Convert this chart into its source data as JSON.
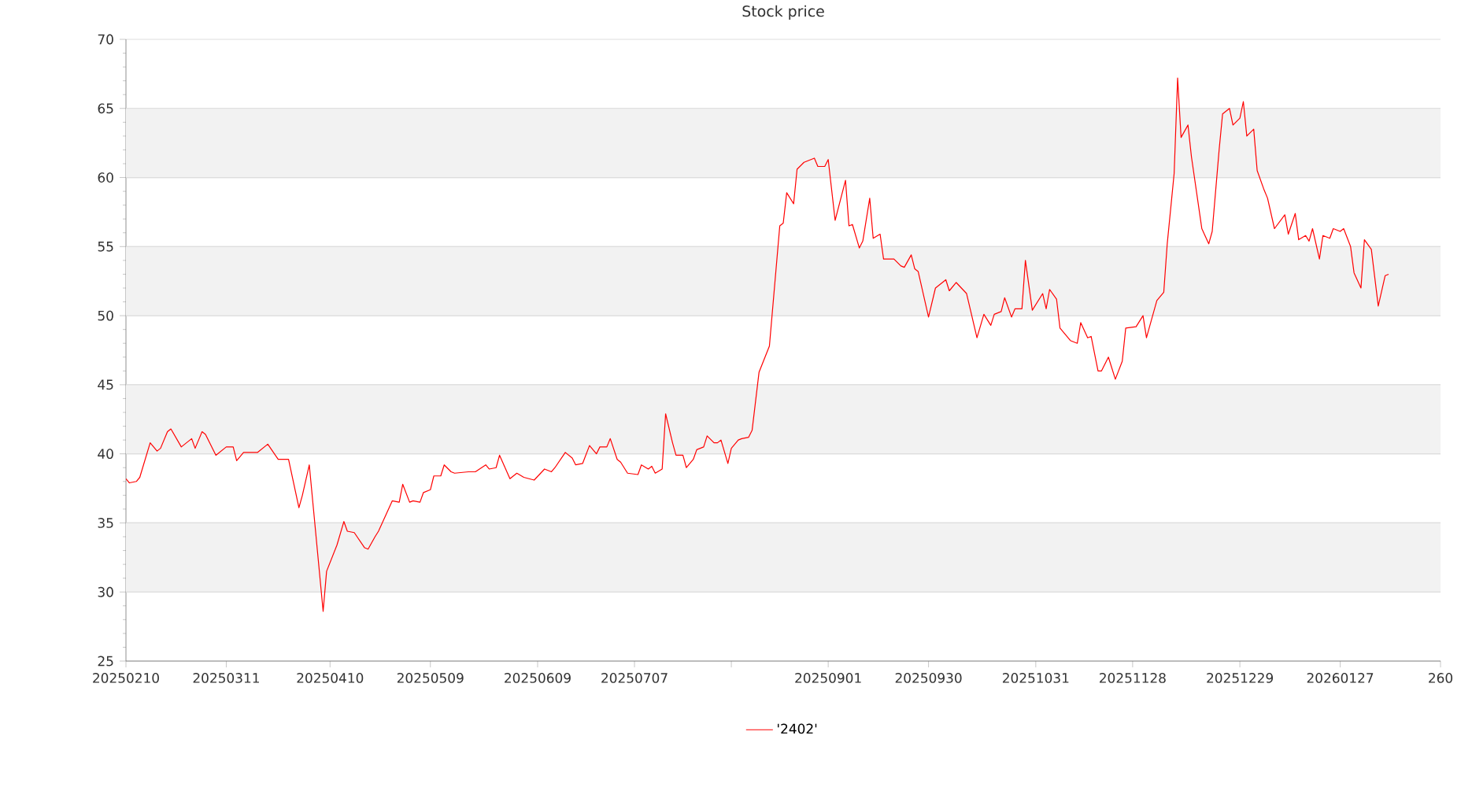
{
  "chart_data": {
    "type": "line",
    "title": "Stock price",
    "xlim": [
      "2025-02-10",
      "2026-02-25"
    ],
    "ylim": [
      25,
      70
    ],
    "xticks": [
      {
        "value": "2025-02-10",
        "label": "20250210"
      },
      {
        "value": "2025-03-11",
        "label": "20250311"
      },
      {
        "value": "2025-04-10",
        "label": "20250410"
      },
      {
        "value": "2025-05-09",
        "label": "20250509"
      },
      {
        "value": "2025-06-09",
        "label": "20250609"
      },
      {
        "value": "2025-07-07",
        "label": "20250707"
      },
      {
        "value": "2025-08-04",
        "label": null
      },
      {
        "value": "2025-09-01",
        "label": "20250901"
      },
      {
        "value": "2025-09-30",
        "label": "20250930"
      },
      {
        "value": "2025-10-31",
        "label": "20251031"
      },
      {
        "value": "2025-11-28",
        "label": "20251128"
      },
      {
        "value": "2025-12-29",
        "label": "20251229"
      },
      {
        "value": "2026-01-27",
        "label": "20260127"
      },
      {
        "value": "2026-02-25",
        "label": "260"
      }
    ],
    "yticks": [
      25,
      30,
      35,
      40,
      45,
      50,
      55,
      60,
      65,
      70
    ],
    "grid": "y",
    "legend": "bottom",
    "marker": "none",
    "line_style": "solid",
    "series": [
      {
        "name": "'2402'",
        "color": "#ff0000",
        "x": [
          "2025-02-10",
          "2025-02-11",
          "2025-02-13",
          "2025-02-14",
          "2025-02-17",
          "2025-02-19",
          "2025-02-20",
          "2025-02-22",
          "2025-02-23",
          "2025-02-26",
          "2025-03-01",
          "2025-03-02",
          "2025-03-04",
          "2025-03-05",
          "2025-03-08",
          "2025-03-11",
          "2025-03-13",
          "2025-03-14",
          "2025-03-16",
          "2025-03-19",
          "2025-03-20",
          "2025-03-23",
          "2025-03-26",
          "2025-03-29",
          "2025-04-01",
          "2025-04-02",
          "2025-04-04",
          "2025-04-08",
          "2025-04-09",
          "2025-04-12",
          "2025-04-14",
          "2025-04-15",
          "2025-04-17",
          "2025-04-20",
          "2025-04-21",
          "2025-04-23",
          "2025-04-24",
          "2025-04-28",
          "2025-04-30",
          "2025-05-01",
          "2025-05-03",
          "2025-05-04",
          "2025-05-06",
          "2025-05-07",
          "2025-05-09",
          "2025-05-10",
          "2025-05-12",
          "2025-05-13",
          "2025-05-15",
          "2025-05-16",
          "2025-05-20",
          "2025-05-22",
          "2025-05-25",
          "2025-05-26",
          "2025-05-28",
          "2025-05-29",
          "2025-06-01",
          "2025-06-03",
          "2025-06-05",
          "2025-06-08",
          "2025-06-11",
          "2025-06-13",
          "2025-06-14",
          "2025-06-17",
          "2025-06-19",
          "2025-06-20",
          "2025-06-22",
          "2025-06-24",
          "2025-06-26",
          "2025-06-27",
          "2025-06-29",
          "2025-06-30",
          "2025-07-02",
          "2025-07-03",
          "2025-07-05",
          "2025-07-08",
          "2025-07-09",
          "2025-07-11",
          "2025-07-12",
          "2025-07-13",
          "2025-07-15",
          "2025-07-16",
          "2025-07-18",
          "2025-07-19",
          "2025-07-21",
          "2025-07-22",
          "2025-07-24",
          "2025-07-25",
          "2025-07-27",
          "2025-07-28",
          "2025-07-30",
          "2025-07-31",
          "2025-08-01",
          "2025-08-03",
          "2025-08-04",
          "2025-08-06",
          "2025-08-07",
          "2025-08-09",
          "2025-08-10",
          "2025-08-12",
          "2025-08-15",
          "2025-08-18",
          "2025-08-19",
          "2025-08-20",
          "2025-08-22",
          "2025-08-23",
          "2025-08-25",
          "2025-08-26",
          "2025-08-28",
          "2025-08-29",
          "2025-08-31",
          "2025-09-01",
          "2025-09-03",
          "2025-09-06",
          "2025-09-07",
          "2025-09-08",
          "2025-09-10",
          "2025-09-11",
          "2025-09-13",
          "2025-09-14",
          "2025-09-16",
          "2025-09-17",
          "2025-09-20",
          "2025-09-22",
          "2025-09-23",
          "2025-09-25",
          "2025-09-26",
          "2025-09-27",
          "2025-09-30",
          "2025-10-02",
          "2025-10-05",
          "2025-10-06",
          "2025-10-08",
          "2025-10-11",
          "2025-10-14",
          "2025-10-16",
          "2025-10-18",
          "2025-10-19",
          "2025-10-21",
          "2025-10-22",
          "2025-10-24",
          "2025-10-25",
          "2025-10-27",
          "2025-10-28",
          "2025-10-30",
          "2025-11-02",
          "2025-11-03",
          "2025-11-04",
          "2025-11-06",
          "2025-11-07",
          "2025-11-10",
          "2025-11-12",
          "2025-11-13",
          "2025-11-15",
          "2025-11-16",
          "2025-11-18",
          "2025-11-19",
          "2025-11-21",
          "2025-11-23",
          "2025-11-25",
          "2025-11-26",
          "2025-11-29",
          "2025-12-01",
          "2025-12-02",
          "2025-12-05",
          "2025-12-07",
          "2025-12-08",
          "2025-12-10",
          "2025-12-11",
          "2025-12-12",
          "2025-12-14",
          "2025-12-15",
          "2025-12-18",
          "2025-12-20",
          "2025-12-21",
          "2025-12-23",
          "2025-12-24",
          "2025-12-26",
          "2025-12-27",
          "2025-12-29",
          "2025-12-30",
          "2025-12-31",
          "2026-01-02",
          "2026-01-03",
          "2026-01-05",
          "2026-01-06",
          "2026-01-08",
          "2026-01-11",
          "2026-01-12",
          "2026-01-14",
          "2026-01-15",
          "2026-01-17",
          "2026-01-18",
          "2026-01-19",
          "2026-01-21",
          "2026-01-22",
          "2026-01-24",
          "2026-01-25",
          "2026-01-27",
          "2026-01-28",
          "2026-01-30",
          "2026-01-31",
          "2026-02-02",
          "2026-02-03",
          "2026-02-05",
          "2026-02-07",
          "2026-02-09",
          "2026-02-10"
        ],
        "values": [
          38.2,
          37.9,
          38.0,
          38.3,
          40.8,
          40.2,
          40.4,
          41.6,
          41.8,
          40.5,
          41.1,
          40.4,
          41.6,
          41.4,
          39.9,
          40.5,
          40.5,
          39.5,
          40.1,
          40.1,
          40.1,
          40.7,
          39.6,
          39.6,
          36.1,
          37.0,
          39.2,
          28.6,
          31.5,
          33.4,
          35.1,
          34.4,
          34.3,
          33.2,
          33.1,
          34.0,
          34.4,
          36.6,
          36.5,
          37.8,
          36.5,
          36.6,
          36.5,
          37.2,
          37.4,
          38.4,
          38.4,
          39.2,
          38.7,
          38.6,
          38.7,
          38.7,
          39.2,
          38.9,
          39.0,
          39.9,
          38.2,
          38.6,
          38.3,
          38.1,
          38.9,
          38.7,
          39.0,
          40.1,
          39.7,
          39.2,
          39.3,
          40.6,
          40.0,
          40.5,
          40.5,
          41.1,
          39.6,
          39.4,
          38.6,
          38.5,
          39.2,
          38.9,
          39.1,
          38.6,
          38.9,
          42.9,
          40.8,
          39.9,
          39.9,
          39.0,
          39.6,
          40.3,
          40.5,
          41.3,
          40.8,
          40.8,
          41.0,
          39.3,
          40.4,
          41.0,
          41.1,
          41.2,
          41.7,
          45.9,
          47.8,
          56.5,
          56.7,
          58.9,
          58.1,
          60.6,
          61.1,
          61.2,
          61.4,
          60.8,
          60.8,
          61.3,
          56.9,
          59.8,
          56.5,
          56.6,
          54.9,
          55.4,
          58.5,
          55.6,
          55.9,
          54.1,
          54.1,
          53.6,
          53.5,
          54.4,
          53.4,
          53.2,
          49.9,
          52.0,
          52.6,
          51.8,
          52.4,
          51.6,
          48.4,
          50.1,
          49.3,
          50.1,
          50.3,
          51.3,
          49.9,
          50.5,
          50.5,
          54.0,
          50.4,
          51.6,
          50.5,
          51.9,
          51.2,
          49.1,
          48.2,
          48.0,
          49.5,
          48.4,
          48.5,
          46.0,
          46.0,
          47.0,
          45.4,
          46.7,
          49.1,
          49.2,
          50.0,
          48.4,
          51.1,
          51.7,
          55.2,
          60.3,
          67.2,
          62.9,
          63.8,
          61.5,
          56.3,
          55.2,
          56.1,
          62.0,
          64.6,
          65.0,
          63.8,
          64.3,
          65.5,
          63.0,
          63.5,
          60.5,
          59.1,
          58.5,
          56.3,
          57.3,
          55.9,
          57.4,
          55.5,
          55.8,
          55.4,
          56.3,
          54.1,
          55.8,
          55.6,
          56.3,
          56.1,
          56.3,
          55.0,
          53.1,
          52.0,
          55.5,
          54.8,
          50.7,
          52.9,
          53.0
        ]
      }
    ]
  }
}
